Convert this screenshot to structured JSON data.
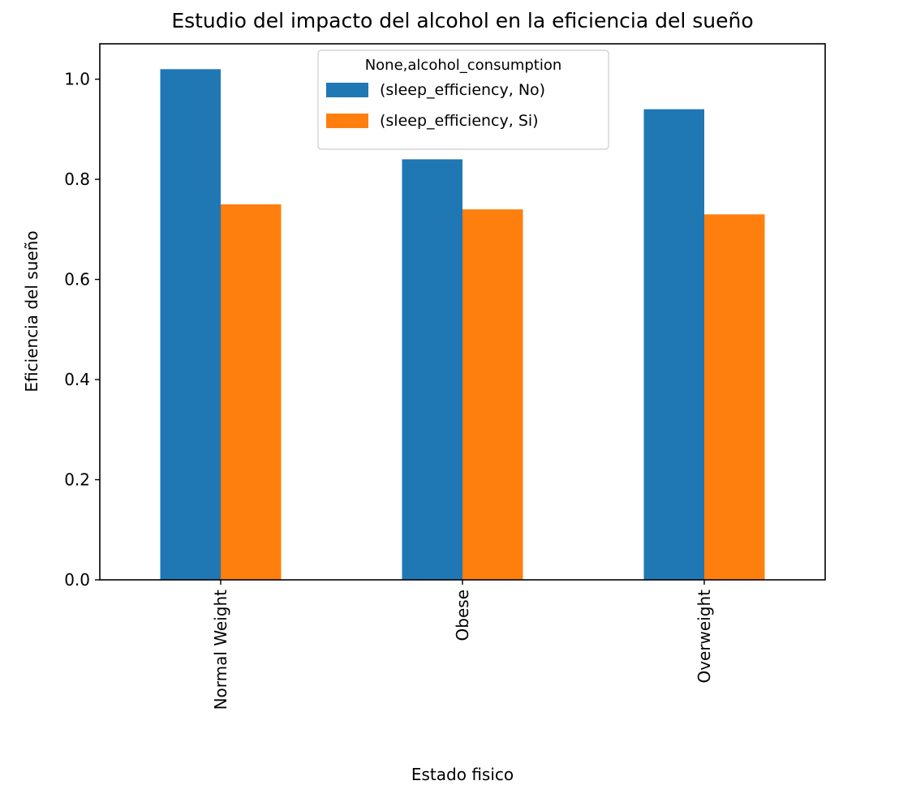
{
  "chart_data": {
    "type": "bar",
    "title": "Estudio del impacto del alcohol en la eficiencia del sueño",
    "xlabel": "Estado fisico",
    "ylabel": "Eficiencia del sueño",
    "categories": [
      "Normal Weight",
      "Obese",
      "Overweight"
    ],
    "series": [
      {
        "name": "(sleep_efficiency, No)",
        "values": [
          1.02,
          0.84,
          0.94
        ],
        "color": "#1f77b4"
      },
      {
        "name": "(sleep_efficiency, Si)",
        "values": [
          0.75,
          0.74,
          0.73
        ],
        "color": "#ff7f0e"
      }
    ],
    "ylim": [
      0,
      1.0707
    ],
    "yticks": [
      "0.0",
      "0.2",
      "0.4",
      "0.6",
      "0.8",
      "1.0"
    ],
    "grid": false,
    "legend": {
      "title": "None,alcohol_consumption",
      "position": "top-center"
    }
  }
}
